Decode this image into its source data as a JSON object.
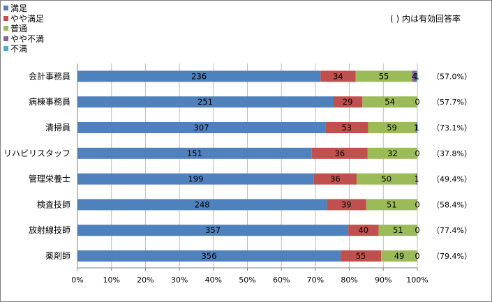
{
  "note": "( ) 内は有効回答率",
  "chart_data": {
    "type": "bar",
    "orientation": "horizontal",
    "stacked": "percent",
    "categories": [
      "会計事務員",
      "病棟事務員",
      "清掃員",
      "リハビリスタッフ",
      "管理栄養士",
      "検査技師",
      "放射線技師",
      "薬剤師"
    ],
    "series": [
      {
        "name": "満足",
        "color": "#4f81bd",
        "values": [
          236,
          251,
          307,
          151,
          199,
          248,
          357,
          356
        ]
      },
      {
        "name": "やや満足",
        "color": "#c0504d",
        "values": [
          34,
          29,
          53,
          36,
          36,
          39,
          40,
          55
        ]
      },
      {
        "name": "普通",
        "color": "#9bbb59",
        "values": [
          55,
          54,
          59,
          32,
          50,
          51,
          51,
          49
        ]
      },
      {
        "name": "やや不満",
        "color": "#8064a2",
        "values": [
          4,
          0,
          1,
          0,
          1,
          0,
          0,
          0
        ]
      },
      {
        "name": "不満",
        "color": "#4bacc6",
        "values": [
          1,
          0,
          1,
          0,
          0,
          0,
          0,
          0
        ]
      }
    ],
    "response_rates": [
      "（57.0%）",
      "（57.7%）",
      "（73.1%）",
      "（37.8%）",
      "（49.4%）",
      "（58.4%）",
      "（77.4%）",
      "（79.4%）"
    ],
    "x_ticks": [
      "0%",
      "10%",
      "20%",
      "30%",
      "40%",
      "50%",
      "60%",
      "70%",
      "80%",
      "90%",
      "100%"
    ],
    "xlim": [
      0,
      100
    ],
    "grid": true,
    "legend_position": "top-left"
  }
}
